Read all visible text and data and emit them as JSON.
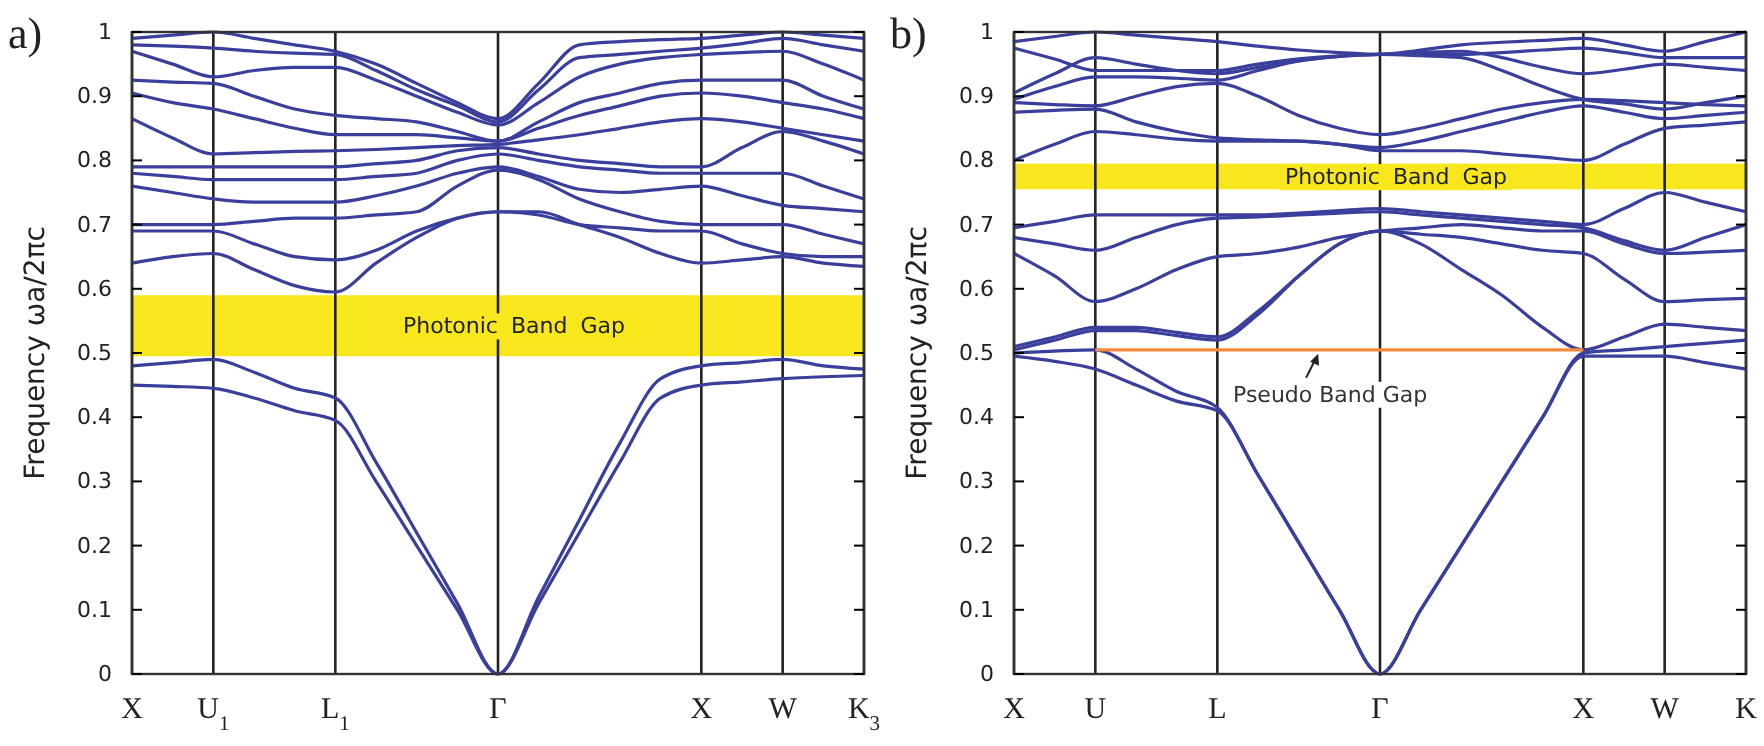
{
  "chart_data": [
    {
      "type": "line",
      "title": "a)",
      "ylabel": "Frequency ωa/2πc",
      "categories": [
        "X",
        null,
        "U$_{1}$",
        null,
        null,
        "L$_{1}$",
        null,
        null,
        null,
        "Γ",
        null,
        null,
        null,
        null,
        "X",
        null,
        "W",
        null,
        "K$_{3}$"
      ],
      "ylim": [
        0,
        1
      ],
      "yticks": [
        0,
        0.1,
        0.2,
        0.3,
        0.4,
        0.5,
        0.6,
        0.7,
        0.8,
        0.9,
        1
      ],
      "grid": "x",
      "bands": [
        {
          "axis": "y",
          "from": 0.495,
          "to": 0.59,
          "label": "Photonic Band Gap",
          "color": "#f8e71c"
        }
      ],
      "series": [
        {
          "color": "#3b3f9c",
          "values": [
            0.45,
            0.448,
            0.445,
            0.43,
            0.41,
            0.395,
            0.3,
            0.2,
            0.1,
            0,
            0.11,
            0.22,
            0.33,
            0.43,
            0.45,
            0.455,
            0.46,
            0.463,
            0.465
          ]
        },
        {
          "color": "#3b3f9c",
          "values": [
            0.48,
            0.485,
            0.49,
            0.47,
            0.445,
            0.43,
            0.33,
            0.22,
            0.11,
            0,
            0.12,
            0.24,
            0.36,
            0.46,
            0.48,
            0.485,
            0.49,
            0.48,
            0.475
          ]
        },
        {
          "color": "#3b3f9c",
          "values": [
            0.64,
            0.65,
            0.655,
            0.63,
            0.605,
            0.595,
            0.64,
            0.68,
            0.71,
            0.72,
            0.72,
            0.7,
            0.68,
            0.655,
            0.64,
            0.645,
            0.65,
            0.64,
            0.635
          ]
        },
        {
          "color": "#3b3f9c",
          "values": [
            0.69,
            0.69,
            0.69,
            0.67,
            0.65,
            0.645,
            0.66,
            0.69,
            0.71,
            0.72,
            0.715,
            0.7,
            0.695,
            0.69,
            0.69,
            0.67,
            0.655,
            0.65,
            0.65
          ]
        },
        {
          "color": "#3b3f9c",
          "values": [
            0.7,
            0.7,
            0.7,
            0.705,
            0.71,
            0.71,
            0.715,
            0.72,
            0.76,
            0.785,
            0.77,
            0.74,
            0.72,
            0.705,
            0.7,
            0.7,
            0.7,
            0.685,
            0.67
          ]
        },
        {
          "color": "#3b3f9c",
          "values": [
            0.76,
            0.75,
            0.74,
            0.735,
            0.735,
            0.735,
            0.745,
            0.76,
            0.78,
            0.79,
            0.775,
            0.755,
            0.75,
            0.755,
            0.76,
            0.745,
            0.73,
            0.725,
            0.72
          ]
        },
        {
          "color": "#3b3f9c",
          "values": [
            0.78,
            0.775,
            0.77,
            0.77,
            0.77,
            0.77,
            0.775,
            0.78,
            0.8,
            0.81,
            0.8,
            0.79,
            0.785,
            0.78,
            0.78,
            0.78,
            0.78,
            0.76,
            0.74
          ]
        },
        {
          "color": "#3b3f9c",
          "values": [
            0.79,
            0.79,
            0.79,
            0.79,
            0.79,
            0.79,
            0.795,
            0.8,
            0.815,
            0.82,
            0.81,
            0.8,
            0.795,
            0.79,
            0.79,
            0.82,
            0.845,
            0.83,
            0.81
          ]
        },
        {
          "color": "#3b3f9c",
          "values": [
            0.865,
            0.835,
            0.81,
            0.812,
            0.814,
            0.815,
            0.817,
            0.82,
            0.823,
            0.825,
            0.832,
            0.84,
            0.85,
            0.86,
            0.865,
            0.86,
            0.85,
            0.84,
            0.83
          ]
        },
        {
          "color": "#3b3f9c",
          "values": [
            0.905,
            0.89,
            0.88,
            0.865,
            0.85,
            0.84,
            0.84,
            0.84,
            0.835,
            0.83,
            0.85,
            0.87,
            0.885,
            0.9,
            0.905,
            0.9,
            0.89,
            0.88,
            0.865
          ]
        },
        {
          "color": "#3b3f9c",
          "values": [
            0.925,
            0.922,
            0.92,
            0.9,
            0.88,
            0.87,
            0.865,
            0.86,
            0.845,
            0.83,
            0.86,
            0.89,
            0.905,
            0.92,
            0.925,
            0.925,
            0.925,
            0.9,
            0.88
          ]
        },
        {
          "color": "#3b3f9c",
          "values": [
            0.97,
            0.95,
            0.93,
            0.94,
            0.945,
            0.945,
            0.925,
            0.9,
            0.875,
            0.855,
            0.89,
            0.93,
            0.95,
            0.96,
            0.965,
            0.968,
            0.97,
            0.95,
            0.925
          ]
        },
        {
          "color": "#3b3f9c",
          "values": [
            0.98,
            0.978,
            0.975,
            0.97,
            0.967,
            0.965,
            0.94,
            0.91,
            0.885,
            0.86,
            0.91,
            0.96,
            0.965,
            0.97,
            0.975,
            0.982,
            0.99,
            0.98,
            0.97
          ]
        },
        {
          "color": "#3b3f9c",
          "values": [
            0.99,
            0.995,
            1.0,
            0.99,
            0.98,
            0.97,
            0.95,
            0.92,
            0.89,
            0.865,
            0.92,
            0.98,
            0.985,
            0.988,
            0.99,
            0.995,
            1.0,
            0.995,
            0.99
          ]
        }
      ]
    },
    {
      "type": "line",
      "title": "b)",
      "ylabel": "Frequency ωa/2πc",
      "categories": [
        "X",
        null,
        "U",
        null,
        null,
        "L",
        null,
        null,
        null,
        "Γ",
        null,
        null,
        null,
        null,
        "X",
        null,
        "W",
        null,
        "K"
      ],
      "ylim": [
        0,
        1
      ],
      "yticks": [
        0,
        0.1,
        0.2,
        0.3,
        0.4,
        0.5,
        0.6,
        0.7,
        0.8,
        0.9,
        1
      ],
      "grid": "x",
      "bands": [
        {
          "axis": "y",
          "from": 0.755,
          "to": 0.795,
          "label": "Photonic Band Gap",
          "color": "#f8e71c"
        }
      ],
      "annotations": [
        {
          "text": "Pseudo Band Gap",
          "y": 0.505
        }
      ],
      "series": [
        {
          "color": "#3b3f9c",
          "values": [
            0.495,
            0.487,
            0.475,
            0.45,
            0.425,
            0.41,
            0.31,
            0.205,
            0.1,
            0,
            0.1,
            0.2,
            0.3,
            0.4,
            0.495,
            0.495,
            0.495,
            0.485,
            0.475
          ]
        },
        {
          "color": "#3b3f9c",
          "values": [
            0.5,
            0.503,
            0.505,
            0.475,
            0.44,
            0.415,
            0.31,
            0.205,
            0.1,
            0,
            0.1,
            0.2,
            0.3,
            0.4,
            0.5,
            0.505,
            0.51,
            0.515,
            0.52
          ]
        },
        {
          "color": "#3b3f9c",
          "values": [
            0.505,
            0.52,
            0.535,
            0.535,
            0.527,
            0.52,
            0.56,
            0.62,
            0.67,
            0.69,
            0.67,
            0.63,
            0.59,
            0.54,
            0.505,
            0.525,
            0.545,
            0.54,
            0.535
          ]
        },
        {
          "color": "#3b3f9c",
          "values": [
            0.51,
            0.525,
            0.54,
            0.54,
            0.532,
            0.525,
            0.565,
            0.62,
            0.67,
            0.69,
            0.685,
            0.68,
            0.67,
            0.66,
            0.655,
            0.615,
            0.58,
            0.583,
            0.585
          ]
        },
        {
          "color": "#3b3f9c",
          "values": [
            0.655,
            0.62,
            0.58,
            0.6,
            0.63,
            0.65,
            0.655,
            0.665,
            0.68,
            0.69,
            0.695,
            0.7,
            0.695,
            0.69,
            0.69,
            0.67,
            0.655,
            0.657,
            0.66
          ]
        },
        {
          "color": "#3b3f9c",
          "values": [
            0.68,
            0.67,
            0.66,
            0.68,
            0.7,
            0.71,
            0.712,
            0.715,
            0.718,
            0.72,
            0.715,
            0.71,
            0.705,
            0.7,
            0.695,
            0.675,
            0.66,
            0.68,
            0.7
          ]
        },
        {
          "color": "#3b3f9c",
          "values": [
            0.695,
            0.705,
            0.715,
            0.715,
            0.715,
            0.715,
            0.715,
            0.718,
            0.722,
            0.725,
            0.72,
            0.715,
            0.71,
            0.705,
            0.7,
            0.725,
            0.75,
            0.735,
            0.72
          ]
        },
        {
          "color": "#3b3f9c",
          "values": [
            0.8,
            0.825,
            0.845,
            0.84,
            0.833,
            0.83,
            0.83,
            0.83,
            0.825,
            0.815,
            0.815,
            0.815,
            0.81,
            0.805,
            0.8,
            0.825,
            0.85,
            0.855,
            0.86
          ]
        },
        {
          "color": "#3b3f9c",
          "values": [
            0.875,
            0.878,
            0.88,
            0.86,
            0.845,
            0.835,
            0.832,
            0.83,
            0.825,
            0.82,
            0.83,
            0.845,
            0.86,
            0.875,
            0.885,
            0.875,
            0.865,
            0.87,
            0.875
          ]
        },
        {
          "color": "#3b3f9c",
          "values": [
            0.89,
            0.887,
            0.885,
            0.9,
            0.915,
            0.92,
            0.9,
            0.87,
            0.85,
            0.84,
            0.85,
            0.865,
            0.88,
            0.89,
            0.895,
            0.893,
            0.89,
            0.887,
            0.885
          ]
        },
        {
          "color": "#3b3f9c",
          "values": [
            0.895,
            0.915,
            0.93,
            0.93,
            0.928,
            0.925,
            0.94,
            0.955,
            0.962,
            0.965,
            0.963,
            0.96,
            0.94,
            0.915,
            0.895,
            0.888,
            0.88,
            0.89,
            0.9
          ]
        },
        {
          "color": "#3b3f9c",
          "values": [
            0.905,
            0.935,
            0.96,
            0.95,
            0.94,
            0.935,
            0.945,
            0.955,
            0.962,
            0.965,
            0.968,
            0.97,
            0.96,
            0.945,
            0.935,
            0.942,
            0.95,
            0.945,
            0.94
          ]
        },
        {
          "color": "#3b3f9c",
          "values": [
            0.975,
            0.958,
            0.94,
            0.94,
            0.94,
            0.94,
            0.95,
            0.958,
            0.963,
            0.965,
            0.965,
            0.965,
            0.968,
            0.972,
            0.975,
            0.968,
            0.96,
            0.96,
            0.96
          ]
        },
        {
          "color": "#3b3f9c",
          "values": [
            0.985,
            0.993,
            1.0,
            0.995,
            0.99,
            0.985,
            0.978,
            0.972,
            0.968,
            0.965,
            0.972,
            0.98,
            0.984,
            0.987,
            0.99,
            0.98,
            0.97,
            0.985,
            1.0
          ]
        },
        {
          "color": "#f08a3c",
          "values": [
            null,
            null,
            0.505,
            0.505,
            0.505,
            0.505,
            0.505,
            0.505,
            0.505,
            0.505,
            0.505,
            0.505,
            0.505,
            0.505,
            0.505,
            null,
            null,
            null,
            null
          ]
        }
      ]
    }
  ]
}
